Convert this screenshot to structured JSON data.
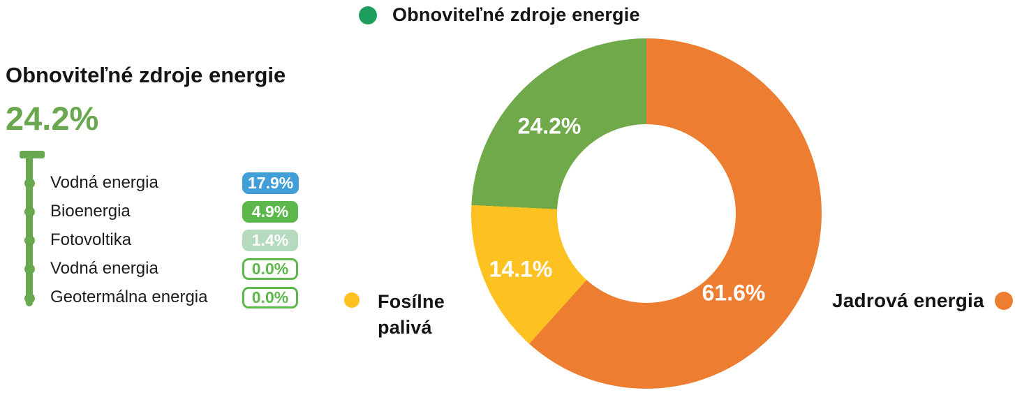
{
  "left_panel": {
    "title": "Obnoviteľné zdroje energie",
    "total_label": "24.2%",
    "items": [
      {
        "label": "Vodná energia",
        "value": "17.9%",
        "badge_color": "#419ED6"
      },
      {
        "label": "Bioenergia",
        "value": "4.9%",
        "badge_color": "#5CB84A"
      },
      {
        "label": "Fotovoltika",
        "value": "1.4%",
        "badge_color": "#B5DABE"
      },
      {
        "label": "Vodná energia",
        "value": "0.0%",
        "badge_color": "outline-green"
      },
      {
        "label": "Geotermálna energia",
        "value": "0.0%",
        "badge_color": "outline-green"
      }
    ]
  },
  "legend": {
    "top": {
      "label": "Obnoviteľné zdroje energie",
      "dot_color": "#1F9D5C"
    },
    "fossil": {
      "line1": "Fosílne",
      "line2": "palivá",
      "dot_color": "#FDC221"
    },
    "nuclear": {
      "label": "Jadrová energia",
      "dot_color": "#ED7D31"
    }
  },
  "colors": {
    "slice_nuclear_orange": "#ED7D31",
    "slice_fossil_yellow": "#FDC221",
    "slice_renewable_green": "#6FA94A",
    "accent_green": "#6AA84F",
    "badge_blue": "#419ED6",
    "badge_green": "#5CB84A",
    "badge_pale_green": "#B5DABE"
  },
  "chart_data": {
    "type": "pie",
    "subtype": "donut",
    "title": "",
    "categories": [
      "Jadrová energia",
      "Fosílne palivá",
      "Obnoviteľné zdroje energie"
    ],
    "values": [
      61.6,
      14.1,
      24.2
    ],
    "labels": [
      "61.6%",
      "14.1%",
      "24.2%"
    ],
    "colors": [
      "#ED7D31",
      "#FDC221",
      "#6FA94A"
    ],
    "start_angle_deg": 0,
    "direction": "clockwise",
    "inner_radius_ratio": 0.51,
    "legend_position": "outside",
    "breakdown": {
      "parent_category": "Obnoviteľné zdroje energie",
      "parent_value": 24.2,
      "series": [
        {
          "name": "Vodná energia",
          "value": 17.9
        },
        {
          "name": "Bioenergia",
          "value": 4.9
        },
        {
          "name": "Fotovoltika",
          "value": 1.4
        },
        {
          "name": "Vodná energia",
          "value": 0.0
        },
        {
          "name": "Geotermálna energia",
          "value": 0.0
        }
      ]
    }
  }
}
